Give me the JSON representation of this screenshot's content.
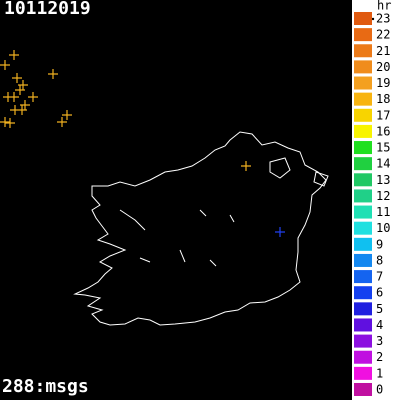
{
  "title": "10112019",
  "footer": "288:msgs",
  "legend": {
    "header": "hr",
    "items": [
      {
        "label": "23",
        "color": "#e05a10"
      },
      {
        "label": "22",
        "color": "#e86a14"
      },
      {
        "label": "21",
        "color": "#ec7a18"
      },
      {
        "label": "20",
        "color": "#f08c1c"
      },
      {
        "label": "19",
        "color": "#f4a020"
      },
      {
        "label": "18",
        "color": "#f8b410"
      },
      {
        "label": "17",
        "color": "#f8d400"
      },
      {
        "label": "16",
        "color": "#f8f400"
      },
      {
        "label": "15",
        "color": "#20e020"
      },
      {
        "label": "14",
        "color": "#20d040"
      },
      {
        "label": "13",
        "color": "#20c864"
      },
      {
        "label": "12",
        "color": "#20d088"
      },
      {
        "label": "11",
        "color": "#20e0b4"
      },
      {
        "label": "10",
        "color": "#20e0e0"
      },
      {
        "label": "9",
        "color": "#10c0f0"
      },
      {
        "label": "8",
        "color": "#1488f0"
      },
      {
        "label": "7",
        "color": "#1464f0"
      },
      {
        "label": "6",
        "color": "#1440f0"
      },
      {
        "label": "5",
        "color": "#2020e0"
      },
      {
        "label": "4",
        "color": "#6010e0"
      },
      {
        "label": "3",
        "color": "#8c10e0"
      },
      {
        "label": "2",
        "color": "#c010e0"
      },
      {
        "label": "1",
        "color": "#f010e0"
      },
      {
        "label": "0",
        "color": "#c010a0"
      }
    ]
  }
}
